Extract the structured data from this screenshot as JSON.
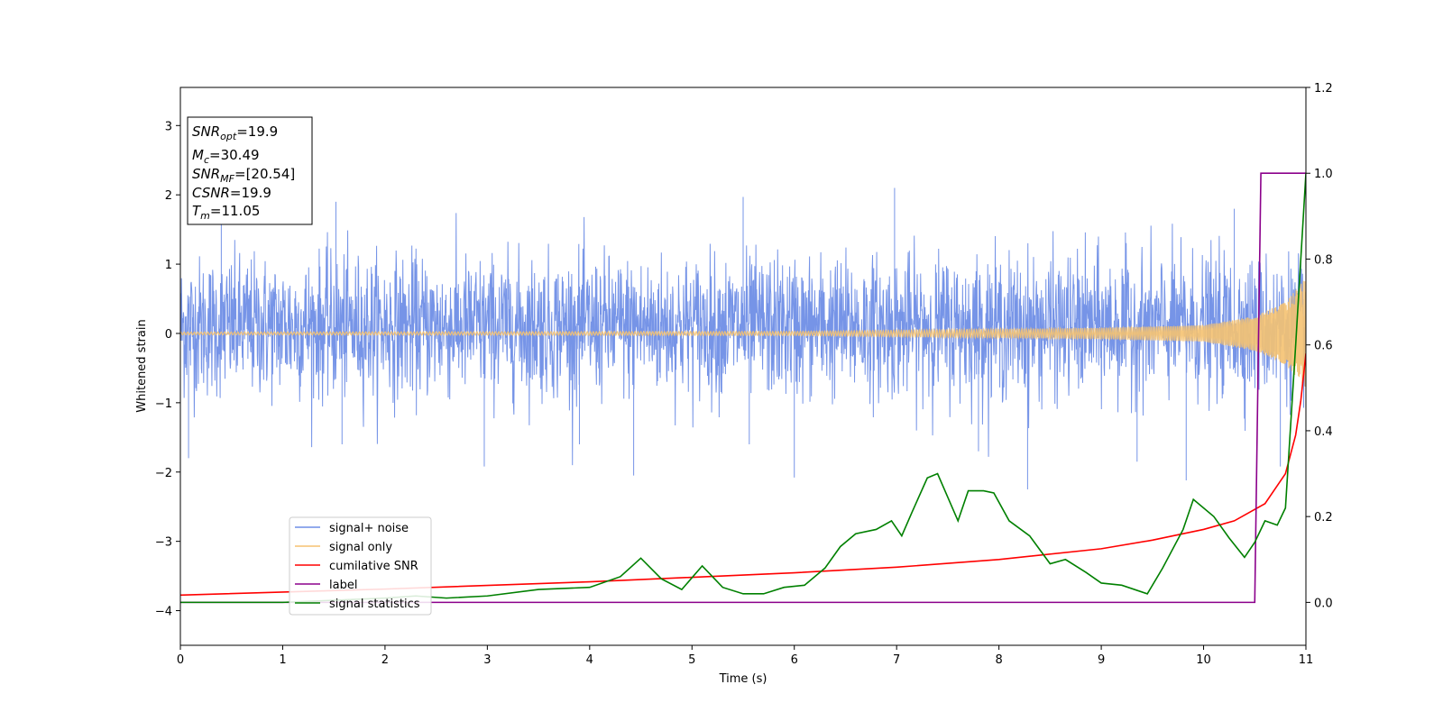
{
  "chart_data": {
    "type": "line",
    "title": "",
    "xlabel": "Time (s)",
    "ylabel": "Whitened strain",
    "xlim": [
      0,
      11
    ],
    "ylim": [
      -4.5,
      3.55
    ],
    "y2lim": [
      -0.1,
      1.2
    ],
    "xticks": [
      "0",
      "1",
      "2",
      "3",
      "4",
      "5",
      "6",
      "7",
      "8",
      "9",
      "10",
      "11"
    ],
    "yticks": [
      "−4",
      "−3",
      "−2",
      "−1",
      "0",
      "1",
      "2",
      "3"
    ],
    "y2ticks": [
      "0.0",
      "0.2",
      "0.4",
      "0.6",
      "0.8",
      "1.0",
      "1.2"
    ],
    "grid": false,
    "legend_position": "lower-left",
    "legend": [
      "signal+ noise",
      "signal only",
      "cumilative SNR",
      "label",
      "signal statistics"
    ],
    "colors": {
      "signal_noise": "#6f8ee6",
      "signal_only": "#f5c271",
      "cumulative_snr": "#ff0000",
      "label": "#8b008b",
      "signal_statistics": "#008000"
    },
    "series": [
      {
        "name": "signal+ noise",
        "axis": "left",
        "description_stats": {
          "band_typical": [
            -0.9,
            1.1
          ],
          "peak_max": 2.1,
          "peak_min": -2.25
        },
        "peaks": [
          [
            0.08,
            -1.8
          ],
          [
            0.4,
            1.85
          ],
          [
            1.52,
            1.9
          ],
          [
            1.58,
            -1.6
          ],
          [
            2.97,
            -1.92
          ],
          [
            3.9,
            -1.6
          ],
          [
            4.43,
            -2.05
          ],
          [
            5.5,
            1.97
          ],
          [
            5.56,
            -1.6
          ],
          [
            6.0,
            -2.08
          ],
          [
            6.98,
            2.1
          ],
          [
            7.8,
            -1.7
          ],
          [
            8.28,
            -2.25
          ],
          [
            9.35,
            -1.85
          ],
          [
            9.83,
            -2.12
          ],
          [
            10.3,
            1.8
          ],
          [
            10.75,
            -1.92
          ]
        ]
      },
      {
        "name": "signal only",
        "axis": "left",
        "envelope": {
          "x": [
            0,
            6,
            9,
            10,
            10.5,
            10.8,
            11
          ],
          "amp": [
            0.02,
            0.03,
            0.08,
            0.12,
            0.25,
            0.45,
            0.8
          ]
        }
      },
      {
        "name": "cumilative SNR",
        "axis": "right",
        "x": [
          0,
          2,
          4,
          6,
          7,
          8,
          9,
          9.5,
          10,
          10.3,
          10.6,
          10.8,
          10.9,
          10.95,
          11
        ],
        "y": [
          0.017,
          0.031,
          0.048,
          0.069,
          0.082,
          0.1,
          0.125,
          0.145,
          0.17,
          0.19,
          0.23,
          0.3,
          0.39,
          0.47,
          0.58
        ]
      },
      {
        "name": "label",
        "axis": "right",
        "x": [
          0,
          10.5,
          10.56,
          11
        ],
        "y": [
          0.0,
          0.0,
          1.0,
          1.0
        ]
      },
      {
        "name": "signal statistics",
        "axis": "right",
        "x": [
          0,
          1,
          2,
          2.3,
          2.6,
          3.0,
          3.5,
          4.0,
          4.3,
          4.5,
          4.7,
          4.9,
          5.1,
          5.3,
          5.5,
          5.7,
          5.9,
          6.1,
          6.3,
          6.45,
          6.6,
          6.8,
          6.95,
          7.05,
          7.15,
          7.3,
          7.4,
          7.6,
          7.7,
          7.85,
          7.95,
          8.1,
          8.3,
          8.5,
          8.65,
          8.85,
          9.0,
          9.2,
          9.45,
          9.6,
          9.8,
          9.9,
          10.1,
          10.25,
          10.4,
          10.5,
          10.6,
          10.72,
          10.8,
          10.9,
          11
        ],
        "y": [
          0.0,
          0.0,
          0.01,
          0.015,
          0.01,
          0.015,
          0.03,
          0.035,
          0.06,
          0.103,
          0.055,
          0.03,
          0.085,
          0.035,
          0.02,
          0.02,
          0.035,
          0.04,
          0.08,
          0.13,
          0.16,
          0.17,
          0.19,
          0.155,
          0.21,
          0.29,
          0.3,
          0.19,
          0.26,
          0.26,
          0.255,
          0.19,
          0.155,
          0.09,
          0.1,
          0.07,
          0.045,
          0.04,
          0.02,
          0.08,
          0.17,
          0.24,
          0.2,
          0.15,
          0.105,
          0.14,
          0.19,
          0.18,
          0.22,
          0.6,
          1.0
        ]
      }
    ],
    "info_box": [
      "SNR_opt=19.9",
      "M_c=30.49",
      "SNR_MF=[20.54]",
      "CSNR=19.9",
      "T_m=11.05"
    ]
  },
  "info": {
    "snr_opt_sym": "SNR",
    "snr_opt_sub": "opt",
    "snr_opt_val": "=19.9",
    "mc_sym": "M",
    "mc_sub": "c",
    "mc_val": "=30.49",
    "snr_mf_sym": "SNR",
    "snr_mf_sub": "MF",
    "snr_mf_val": "=[20.54]",
    "csnr_sym": "CSNR",
    "csnr_val": "=19.9",
    "tm_sym": "T",
    "tm_sub": "m",
    "tm_val": "=11.05"
  }
}
